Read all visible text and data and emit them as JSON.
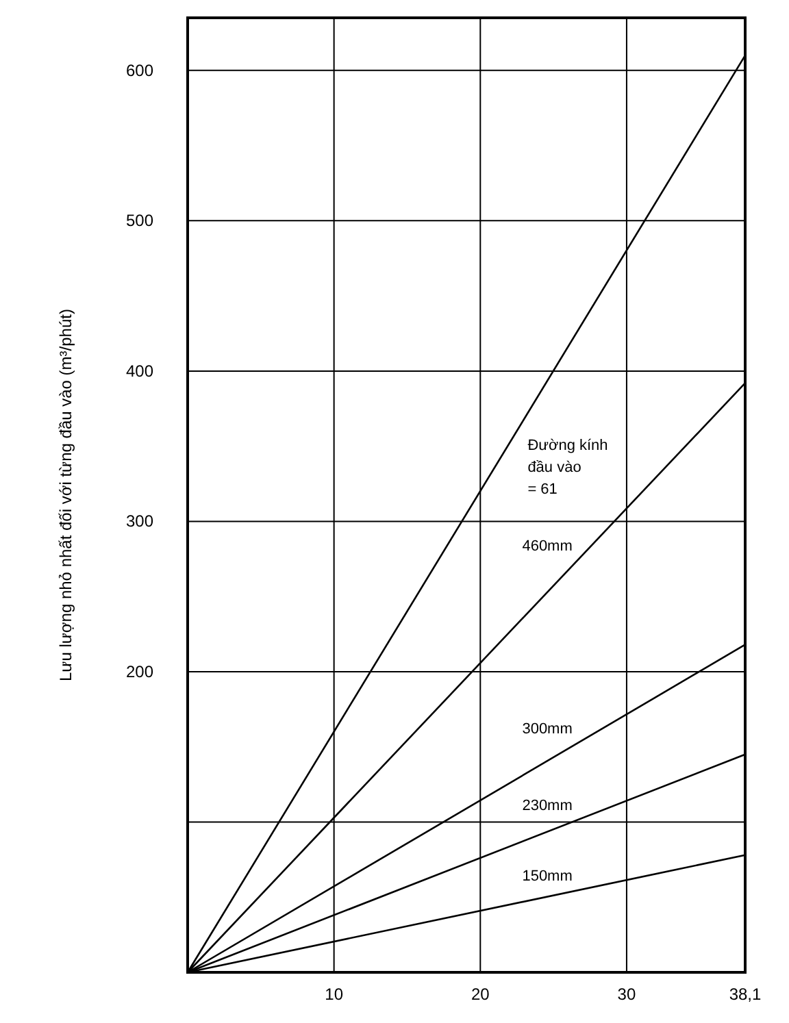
{
  "chart_data": {
    "type": "line",
    "ylabel": "Lưu lượng nhỏ nhất đối với từng đầu vào (m³/phút)",
    "x": [
      0,
      38.1
    ],
    "series": [
      {
        "name": "Đường kính đầu vào = 61",
        "color": "#000000",
        "values": [
          0,
          610
        ]
      },
      {
        "name": "460mm",
        "color": "#000000",
        "values": [
          0,
          392
        ]
      },
      {
        "name": "300mm",
        "color": "#000000",
        "values": [
          0,
          218
        ]
      },
      {
        "name": "230mm",
        "color": "#000000",
        "values": [
          0,
          145
        ]
      },
      {
        "name": "150mm",
        "color": "#000000",
        "values": [
          0,
          78
        ]
      }
    ],
    "xlim": [
      0,
      38.1
    ],
    "xticks": [
      {
        "value": 0,
        "label": null
      },
      10,
      20,
      30,
      {
        "value": 38.1,
        "label": "38,1"
      }
    ],
    "ylim": [
      0,
      635
    ],
    "yticks": [
      {
        "value": 0,
        "label": null
      },
      {
        "value": 100,
        "label": null
      },
      200,
      300,
      400,
      500,
      600
    ],
    "grid": true,
    "marker": "none",
    "line_style": "solid"
  }
}
